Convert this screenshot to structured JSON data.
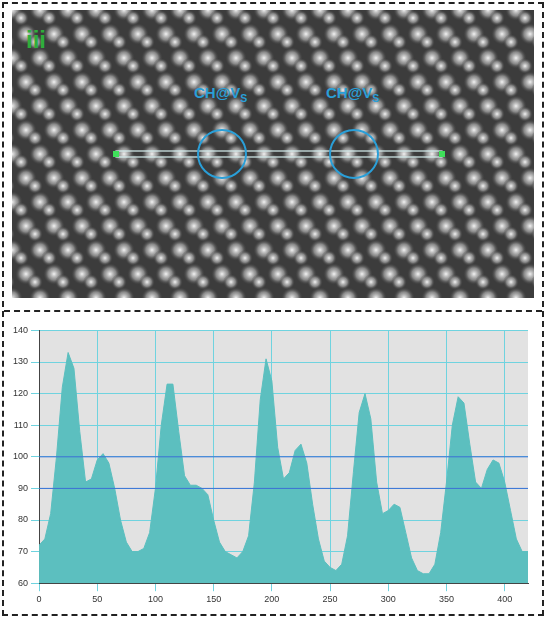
{
  "image_panel": {
    "label": "iii",
    "annotations": [
      {
        "text": "CH@V",
        "subscript": "S"
      },
      {
        "text": "CH@V",
        "subscript": "S"
      }
    ]
  },
  "chart_data": {
    "type": "line",
    "x": [
      0,
      5,
      10,
      15,
      20,
      25,
      30,
      35,
      40,
      45,
      50,
      55,
      60,
      65,
      70,
      75,
      80,
      85,
      90,
      95,
      100,
      105,
      110,
      115,
      120,
      125,
      130,
      135,
      140,
      145,
      150,
      155,
      160,
      165,
      170,
      175,
      180,
      185,
      190,
      195,
      200,
      205,
      210,
      215,
      220,
      225,
      230,
      235,
      240,
      245,
      250,
      255,
      260,
      265,
      270,
      275,
      280,
      285,
      290,
      295,
      300,
      305,
      310,
      315,
      320,
      325,
      330,
      335,
      340,
      345,
      350,
      355,
      360,
      365,
      370,
      375,
      380,
      385,
      390,
      395,
      400,
      405,
      410,
      415,
      420
    ],
    "values": [
      72,
      74,
      82,
      100,
      122,
      133,
      128,
      108,
      92,
      93,
      99,
      101,
      98,
      90,
      80,
      73,
      70,
      70,
      71,
      76,
      90,
      110,
      123,
      123,
      108,
      94,
      91,
      91,
      90,
      88,
      80,
      73,
      70,
      69,
      68,
      70,
      75,
      92,
      118,
      131,
      124,
      103,
      93,
      95,
      102,
      104,
      98,
      85,
      74,
      67,
      65,
      64,
      66,
      75,
      95,
      114,
      120,
      112,
      92,
      82,
      83,
      85,
      84,
      76,
      68,
      64,
      63,
      63,
      66,
      76,
      92,
      110,
      119,
      117,
      104,
      92,
      90,
      96,
      99,
      98,
      92,
      83,
      74,
      70,
      70
    ],
    "color": "#5cbfbf",
    "reference_lines": [
      100,
      90
    ],
    "xlim": [
      0,
      420
    ],
    "xticks": [
      0,
      50,
      100,
      150,
      200,
      250,
      300,
      350,
      400
    ],
    "ylim": [
      60,
      140
    ],
    "yticks": [
      60,
      70,
      80,
      90,
      100,
      110,
      120,
      130,
      140
    ],
    "grid": true
  }
}
